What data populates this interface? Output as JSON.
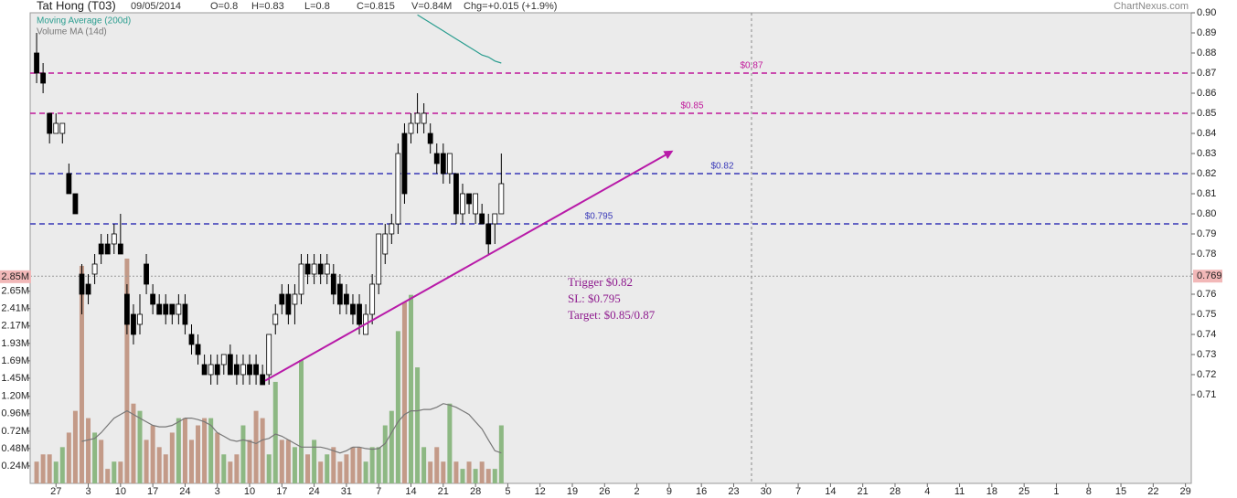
{
  "chart_data": {
    "type": "candlestick",
    "title": "Tat Hong (T03)",
    "header": {
      "date": "09/05/2014",
      "open": "O=0.8",
      "high": "H=0.83",
      "low": "L=0.8",
      "close": "C=0.815",
      "volume": "V=0.84M",
      "change": "Chg=+0.015 (+1.9%)"
    },
    "source": "ChartNexus.com",
    "up_color": "#ffffff",
    "down_color": "#000000",
    "open": [
      0.88,
      0.87,
      0.85,
      0.84,
      0.84,
      0.82,
      0.81,
      0.77,
      0.765,
      0.77,
      0.785,
      0.785,
      0.785,
      0.785,
      0.76,
      0.75,
      0.745,
      0.775,
      0.76,
      0.755,
      0.755,
      0.755,
      0.75,
      0.755,
      0.74,
      0.735,
      0.725,
      0.72,
      0.725,
      0.725,
      0.73,
      0.725,
      0.72,
      0.725,
      0.725,
      0.72,
      0.72,
      0.745,
      0.76,
      0.76,
      0.755,
      0.76,
      0.775,
      0.77,
      0.775,
      0.77,
      0.77,
      0.765,
      0.76,
      0.755,
      0.755,
      0.74,
      0.75,
      0.765,
      0.78,
      0.79,
      0.795,
      0.84,
      0.84,
      0.845,
      0.845,
      0.84,
      0.83,
      0.83,
      0.82,
      0.82,
      0.8,
      0.81,
      0.8,
      0.8,
      0.795,
      0.795,
      0.8
    ],
    "high": [
      0.89,
      0.875,
      0.85,
      0.85,
      0.845,
      0.825,
      0.81,
      0.775,
      0.77,
      0.78,
      0.79,
      0.79,
      0.795,
      0.8,
      0.765,
      0.755,
      0.76,
      0.78,
      0.765,
      0.76,
      0.76,
      0.755,
      0.76,
      0.76,
      0.745,
      0.74,
      0.73,
      0.73,
      0.73,
      0.73,
      0.735,
      0.73,
      0.73,
      0.73,
      0.73,
      0.725,
      0.74,
      0.755,
      0.765,
      0.765,
      0.765,
      0.78,
      0.78,
      0.78,
      0.78,
      0.78,
      0.775,
      0.77,
      0.765,
      0.76,
      0.76,
      0.755,
      0.77,
      0.79,
      0.795,
      0.8,
      0.835,
      0.845,
      0.85,
      0.86,
      0.855,
      0.845,
      0.835,
      0.835,
      0.83,
      0.82,
      0.815,
      0.81,
      0.81,
      0.805,
      0.8,
      0.8,
      0.83
    ],
    "low": [
      0.865,
      0.86,
      0.835,
      0.84,
      0.835,
      0.81,
      0.8,
      0.75,
      0.755,
      0.765,
      0.775,
      0.78,
      0.78,
      0.78,
      0.74,
      0.735,
      0.74,
      0.76,
      0.75,
      0.75,
      0.745,
      0.745,
      0.745,
      0.74,
      0.73,
      0.725,
      0.72,
      0.715,
      0.715,
      0.72,
      0.72,
      0.715,
      0.715,
      0.715,
      0.715,
      0.715,
      0.715,
      0.74,
      0.75,
      0.745,
      0.745,
      0.755,
      0.765,
      0.765,
      0.765,
      0.765,
      0.755,
      0.75,
      0.75,
      0.745,
      0.74,
      0.74,
      0.745,
      0.76,
      0.775,
      0.785,
      0.79,
      0.805,
      0.835,
      0.84,
      0.84,
      0.83,
      0.82,
      0.815,
      0.815,
      0.795,
      0.795,
      0.8,
      0.795,
      0.795,
      0.78,
      0.785,
      0.8
    ],
    "close": [
      0.87,
      0.865,
      0.84,
      0.845,
      0.845,
      0.81,
      0.8,
      0.76,
      0.76,
      0.775,
      0.78,
      0.78,
      0.79,
      0.78,
      0.745,
      0.74,
      0.75,
      0.765,
      0.755,
      0.75,
      0.75,
      0.75,
      0.755,
      0.745,
      0.735,
      0.73,
      0.72,
      0.725,
      0.72,
      0.73,
      0.72,
      0.72,
      0.725,
      0.72,
      0.72,
      0.715,
      0.74,
      0.75,
      0.755,
      0.75,
      0.76,
      0.775,
      0.77,
      0.775,
      0.77,
      0.775,
      0.76,
      0.755,
      0.755,
      0.75,
      0.745,
      0.75,
      0.765,
      0.79,
      0.79,
      0.795,
      0.83,
      0.81,
      0.845,
      0.85,
      0.85,
      0.835,
      0.825,
      0.82,
      0.83,
      0.8,
      0.81,
      0.805,
      0.81,
      0.795,
      0.785,
      0.8,
      0.815
    ],
    "volume": {
      "up_color": "#8db883",
      "down_color": "#c39a88",
      "values": [
        0.3,
        0.4,
        0.4,
        0.3,
        0.5,
        0.7,
        1.0,
        3.0,
        0.9,
        0.7,
        0.6,
        0.2,
        0.3,
        0.3,
        3.1,
        1.1,
        1.0,
        0.6,
        0.8,
        0.5,
        0.4,
        0.7,
        0.9,
        0.9,
        0.6,
        0.8,
        0.9,
        0.9,
        0.7,
        0.4,
        0.3,
        0.4,
        0.8,
        0.6,
        1.0,
        0.9,
        0.4,
        1.4,
        0.6,
        0.6,
        0.5,
        1.7,
        0.4,
        0.6,
        0.3,
        0.4,
        0.5,
        0.3,
        0.4,
        0.5,
        0.5,
        0.3,
        0.5,
        0.5,
        0.8,
        1.0,
        2.1,
        2.5,
        2.6,
        1.6,
        0.5,
        0.3,
        0.5,
        0.3,
        1.1,
        0.3,
        0.2,
        0.3,
        0.2,
        0.3,
        0.2,
        0.2,
        0.8
      ]
    },
    "series": [
      {
        "name": "Moving Average (200d)",
        "color": "#2a9d8f",
        "axis": "y",
        "values": [
          null,
          null,
          null,
          null,
          null,
          null,
          null,
          null,
          null,
          null,
          null,
          null,
          null,
          null,
          null,
          null,
          null,
          null,
          null,
          null,
          null,
          null,
          null,
          null,
          null,
          null,
          null,
          null,
          null,
          null,
          null,
          null,
          null,
          null,
          null,
          null,
          null,
          null,
          null,
          null,
          null,
          null,
          null,
          null,
          null,
          null,
          null,
          null,
          null,
          null,
          null,
          null,
          null,
          null,
          null,
          null,
          null,
          null,
          null,
          0.899,
          0.897,
          0.895,
          0.893,
          0.891,
          0.889,
          0.887,
          0.885,
          0.883,
          0.881,
          0.879,
          0.878,
          0.876,
          0.875
        ]
      },
      {
        "name": "Volume MA (14d)",
        "color": "#777777",
        "axis": "y2",
        "values": [
          null,
          null,
          null,
          null,
          null,
          null,
          null,
          0.58,
          0.6,
          0.62,
          0.7,
          0.8,
          0.9,
          0.95,
          1.0,
          0.95,
          0.9,
          0.85,
          0.8,
          0.78,
          0.78,
          0.8,
          0.85,
          0.9,
          0.9,
          0.88,
          0.85,
          0.8,
          0.7,
          0.65,
          0.6,
          0.58,
          0.6,
          0.58,
          0.55,
          0.6,
          0.62,
          0.68,
          0.65,
          0.6,
          0.55,
          0.5,
          0.5,
          0.5,
          0.5,
          0.48,
          0.45,
          0.42,
          0.45,
          0.5,
          0.5,
          0.48,
          0.47,
          0.48,
          0.55,
          0.7,
          0.85,
          0.95,
          1.0,
          1.0,
          1.02,
          1.02,
          1.05,
          1.1,
          1.08,
          1.05,
          1.0,
          0.95,
          0.85,
          0.75,
          0.6,
          0.45,
          0.42
        ]
      }
    ],
    "xlim": [
      -1,
      178.9
    ],
    "ylim": [
      0.6659,
      0.9
    ],
    "y2lim": [
      0,
      6.49
    ],
    "yticks": [
      {
        "value": 0.9,
        "label": "0.90"
      },
      0.89,
      0.88,
      0.87,
      0.86,
      0.85,
      0.84,
      0.83,
      0.82,
      0.81,
      {
        "value": 0.8,
        "label": "0.80"
      },
      0.79,
      0.78,
      0.77,
      0.76,
      0.75,
      0.74,
      0.73,
      0.72,
      0.71
    ],
    "y2ticks": [
      {
        "value": 0.24,
        "label": "0.24M"
      },
      {
        "value": 0.48,
        "label": "0.48M"
      },
      {
        "value": 0.72,
        "label": "0.72M"
      },
      {
        "value": 0.96,
        "label": "0.96M"
      },
      {
        "value": 1.2,
        "label": "1.20M"
      },
      {
        "value": 1.45,
        "label": "1.45M"
      },
      {
        "value": 1.69,
        "label": "1.69M"
      },
      {
        "value": 1.93,
        "label": "1.93M"
      },
      {
        "value": 2.17,
        "label": "2.17M"
      },
      {
        "value": 2.41,
        "label": "2.41M"
      },
      {
        "value": 2.65,
        "label": "2.65M"
      }
    ],
    "xticks": [
      {
        "value": 3,
        "label": "27"
      },
      {
        "value": 8,
        "label": "3"
      },
      {
        "value": 13,
        "label": "10"
      },
      {
        "value": 18,
        "label": "17"
      },
      {
        "value": 23,
        "label": "24"
      },
      {
        "value": 28,
        "label": "3"
      },
      {
        "value": 33,
        "label": "10"
      },
      {
        "value": 38,
        "label": "17"
      },
      {
        "value": 43,
        "label": "24"
      },
      {
        "value": 48,
        "label": "31"
      },
      {
        "value": 53,
        "label": "7"
      },
      {
        "value": 58,
        "label": "14"
      },
      {
        "value": 63,
        "label": "21"
      },
      {
        "value": 68,
        "label": "28"
      },
      {
        "value": 73,
        "label": "5"
      },
      {
        "value": 78,
        "label": "12"
      },
      {
        "value": 83,
        "label": "19"
      },
      {
        "value": 88,
        "label": "26"
      },
      {
        "value": 93,
        "label": "2"
      },
      {
        "value": 98,
        "label": "9"
      },
      {
        "value": 103,
        "label": "16"
      },
      {
        "value": 108,
        "label": "23"
      },
      {
        "value": 113,
        "label": "30"
      },
      {
        "value": 118,
        "label": "7"
      },
      {
        "value": 123,
        "label": "14"
      },
      {
        "value": 128,
        "label": "21"
      },
      {
        "value": 133,
        "label": "28"
      },
      {
        "value": 138,
        "label": "4"
      },
      {
        "value": 143,
        "label": "11"
      },
      {
        "value": 148,
        "label": "18"
      },
      {
        "value": 153,
        "label": "25"
      },
      {
        "value": 158,
        "label": "1"
      },
      {
        "value": 163,
        "label": "8"
      },
      {
        "value": 168,
        "label": "15"
      },
      {
        "value": 173,
        "label": "22"
      },
      {
        "value": 178,
        "label": "29"
      }
    ],
    "levels": [
      {
        "value": 0.87,
        "label": "$0.87",
        "color": "#c0179a"
      },
      {
        "value": 0.85,
        "label": "$0.85",
        "color": "#c0179a"
      },
      {
        "value": 0.82,
        "label": "$0.82",
        "color": "#3838b8"
      },
      {
        "value": 0.795,
        "label": "$0.795",
        "color": "#3838b8"
      }
    ],
    "crosshair": {
      "price": 0.769,
      "volume": {
        "value": 2.85,
        "label": "2.85M"
      }
    },
    "trendline": {
      "x": [
        35.4,
        98.4
      ],
      "y": [
        0.717,
        0.831
      ],
      "color": "#b81aa8"
    },
    "annotation": [
      "Trigger $0.82",
      "SL: $0.795",
      "Target: $0.85/0.87"
    ]
  }
}
